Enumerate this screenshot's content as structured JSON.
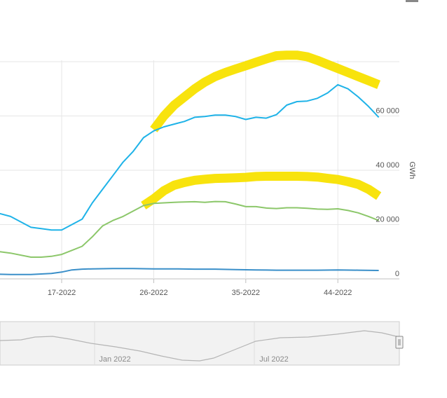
{
  "chart_data": {
    "type": "line",
    "ylabel": "GWh",
    "xlabel": "",
    "ylim": [
      0,
      80000
    ],
    "y_ticks": [
      "0",
      "20 000",
      "40 000",
      "60 000"
    ],
    "y_tick_values": [
      0,
      20000,
      40000,
      60000
    ],
    "x_tick_labels": [
      "17-2022",
      "26-2022",
      "35-2022",
      "44-2022"
    ],
    "x_tick_weeks": [
      17,
      26,
      35,
      44
    ],
    "x_visible_range": [
      11,
      48
    ],
    "grid": true,
    "series": [
      {
        "color": "#1fb3e8",
        "x": [
          10,
          12,
          14,
          15,
          16,
          17,
          18,
          19,
          20,
          21,
          22,
          23,
          24,
          25,
          26,
          27,
          28,
          29,
          30,
          31,
          32,
          33,
          34,
          35,
          36,
          37,
          38,
          39,
          40,
          41,
          42,
          43,
          44,
          45,
          46,
          47,
          48
        ],
        "values": [
          25000,
          23000,
          19000,
          18500,
          18000,
          18000,
          20000,
          22000,
          28000,
          33000,
          38000,
          43000,
          47000,
          52000,
          54500,
          56000,
          57000,
          58000,
          59500,
          59800,
          60300,
          60300,
          59800,
          58700,
          59500,
          59200,
          60500,
          64000,
          65300,
          65500,
          66500,
          68500,
          71500,
          70000,
          67000,
          63500,
          59500
        ]
      },
      {
        "color": "#8cc76a",
        "x": [
          10,
          12,
          14,
          15,
          16,
          17,
          18,
          19,
          20,
          21,
          22,
          23,
          24,
          25,
          26,
          27,
          28,
          29,
          30,
          31,
          32,
          33,
          34,
          35,
          36,
          37,
          38,
          39,
          40,
          41,
          42,
          43,
          44,
          45,
          46,
          47,
          48
        ],
        "values": [
          10500,
          9500,
          8000,
          8000,
          8300,
          9000,
          10500,
          12000,
          15500,
          19500,
          21500,
          23000,
          25000,
          27000,
          27800,
          28000,
          28200,
          28300,
          28400,
          28200,
          28500,
          28400,
          27600,
          26600,
          26600,
          26100,
          25900,
          26200,
          26200,
          26000,
          25700,
          25600,
          25800,
          25200,
          24300,
          23000,
          21500
        ]
      },
      {
        "color": "#3a8fc9",
        "x": [
          10,
          12,
          14,
          16,
          17,
          18,
          19,
          20,
          22,
          24,
          26,
          28,
          30,
          32,
          34,
          36,
          38,
          40,
          42,
          44,
          46,
          48
        ],
        "values": [
          1800,
          1600,
          1600,
          2000,
          2500,
          3300,
          3600,
          3700,
          3800,
          3800,
          3700,
          3700,
          3600,
          3600,
          3400,
          3300,
          3200,
          3200,
          3200,
          3300,
          3200,
          3100
        ]
      }
    ],
    "highlights": [
      {
        "color": "#f8e100",
        "x": [
          26,
          27,
          28,
          29,
          30,
          31,
          32,
          33,
          34,
          35,
          36,
          37,
          38,
          39,
          40,
          41,
          42,
          43,
          44,
          45,
          46,
          47,
          48
        ],
        "values": [
          55000,
          60000,
          64000,
          67000,
          70000,
          72500,
          74500,
          76000,
          77300,
          78500,
          79800,
          81000,
          82200,
          82400,
          82400,
          81800,
          80500,
          79000,
          77500,
          76000,
          74500,
          73000,
          71500
        ]
      },
      {
        "color": "#f8e100",
        "x": [
          25,
          26,
          27,
          28,
          29,
          30,
          31,
          32,
          33,
          34,
          35,
          36,
          37,
          38,
          39,
          40,
          41,
          42,
          43,
          44,
          45,
          46,
          47,
          48
        ],
        "values": [
          27000,
          29500,
          32500,
          34500,
          35500,
          36300,
          36700,
          37000,
          37100,
          37200,
          37400,
          37700,
          37800,
          37800,
          37800,
          37800,
          37700,
          37500,
          37000,
          36600,
          35800,
          34800,
          33000,
          30500
        ]
      }
    ],
    "navigator": {
      "labels": [
        "Jan 2022",
        "Jul 2022"
      ]
    }
  }
}
